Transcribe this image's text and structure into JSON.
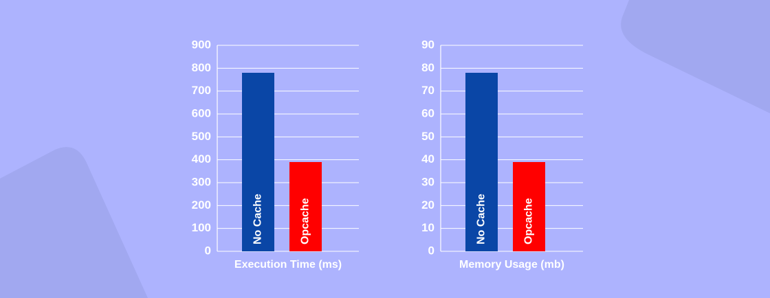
{
  "chart_data": [
    {
      "type": "bar",
      "x_label": "Execution Time (ms)",
      "categories": [
        "No Cache",
        "Opcache"
      ],
      "values": [
        780,
        390
      ],
      "colors": [
        "#0a46a6",
        "#ff0000"
      ],
      "ylim": [
        0,
        900
      ],
      "yticks": [
        0,
        100,
        200,
        300,
        400,
        500,
        600,
        700,
        800,
        900
      ],
      "grid": true
    },
    {
      "type": "bar",
      "x_label": "Memory Usage (mb)",
      "categories": [
        "No Cache",
        "Opcache"
      ],
      "values": [
        78,
        39
      ],
      "colors": [
        "#0a46a6",
        "#ff0000"
      ],
      "ylim": [
        0,
        90
      ],
      "yticks": [
        0,
        10,
        20,
        30,
        40,
        50,
        60,
        70,
        80,
        90
      ],
      "grid": true
    }
  ]
}
